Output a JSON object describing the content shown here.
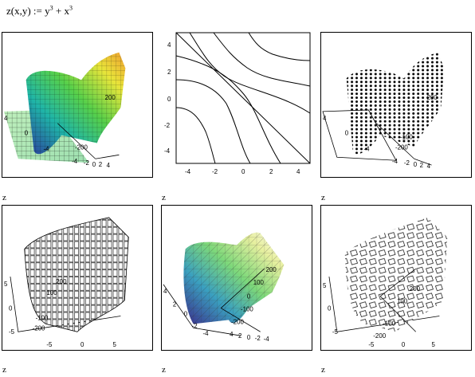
{
  "formula": {
    "lhs": "z(x,y) := y",
    "exp1": "3",
    "mid": " + x",
    "exp2": "3"
  },
  "plot_label": "z",
  "panels": [
    {
      "type": "surface-colormap",
      "ticks": [
        "4",
        "2",
        "0",
        "-2",
        "-4",
        "200",
        "-200",
        "-4",
        "-2",
        "0",
        "2",
        "4"
      ]
    },
    {
      "type": "contour",
      "x_ticks": [
        "-4",
        "-2",
        "0",
        "2",
        "4"
      ],
      "y_ticks": [
        "4",
        "2",
        "0",
        "-2",
        "-4"
      ]
    },
    {
      "type": "data-points",
      "ticks": [
        "4",
        "2",
        "0",
        "-2",
        "-4",
        "200",
        "-100",
        "-200",
        "-4",
        "-2",
        "0",
        "2",
        "4"
      ]
    },
    {
      "type": "bar-3d",
      "ticks": [
        "5",
        "0",
        "-5",
        "200",
        "100",
        "-100",
        "-200",
        "-5",
        "0",
        "5"
      ]
    },
    {
      "type": "surface-patch",
      "ticks": [
        "4",
        "2",
        "0",
        "-2",
        "-4",
        "200",
        "100",
        "0",
        "-100",
        "-200",
        "4",
        "2",
        "0",
        "-2",
        "-4"
      ]
    },
    {
      "type": "bar-3d-outline",
      "ticks": [
        "5",
        "0",
        "-5",
        "200",
        "100",
        "-100",
        "-200",
        "-5",
        "0",
        "5"
      ]
    }
  ]
}
